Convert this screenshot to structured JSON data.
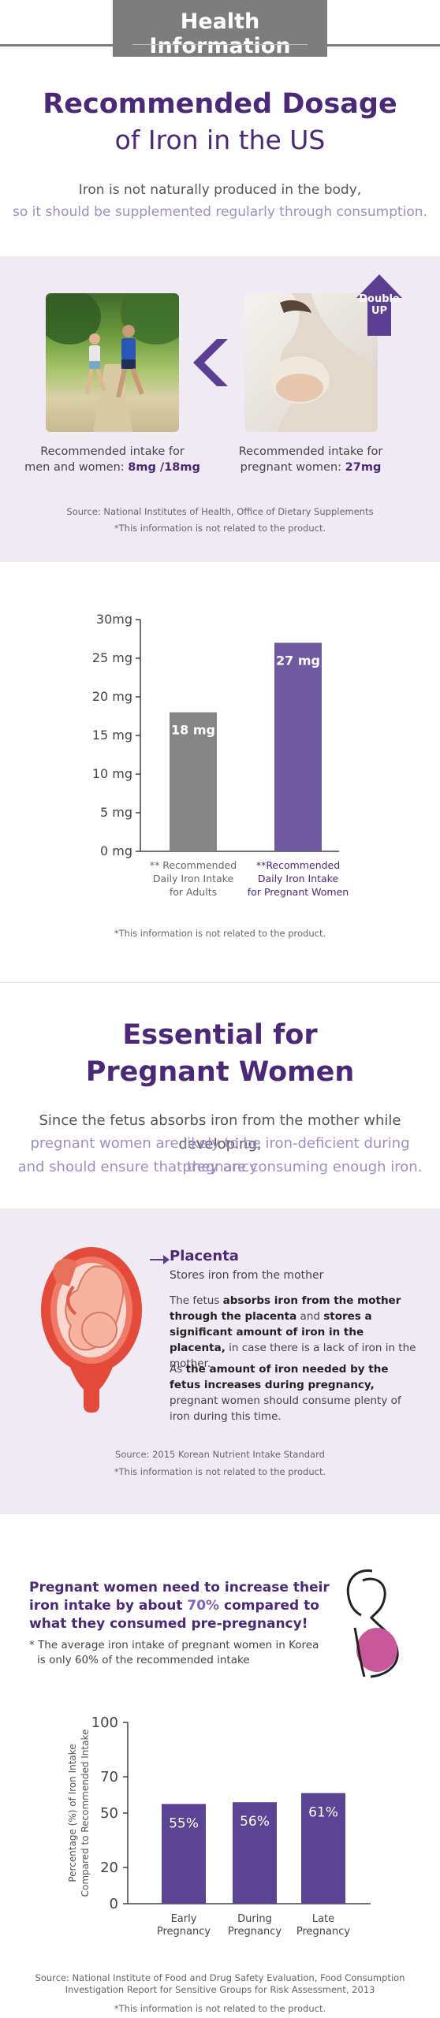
{
  "header": {
    "title": "Health Information"
  },
  "dosage": {
    "title_line1": "Recommended Dosage",
    "title_line2": "of Iron in the US",
    "intro_line1": "Iron is not naturally produced in the body,",
    "intro_line2": "so it should be supplemented regularly through consumption.",
    "badge_line1": "Double",
    "badge_line2": "UP",
    "adult_caption_line1": "Recommended intake for",
    "adult_caption_line2": "men and women: ",
    "adult_caption_value": "8mg /18mg",
    "preg_caption_line1": "Recommended intake for",
    "preg_caption_line2": "pregnant women: ",
    "preg_caption_value": "27mg",
    "source": "Source: National Institutes of Health, Office of Dietary Supplements",
    "disclaimer": "*This information is not related to the product."
  },
  "chart_data": [
    {
      "type": "bar",
      "categories": [
        "** Recommended Daily Iron Intake for Adults",
        "**Recommended Daily Iron Intake for Pregnant Women"
      ],
      "category_lines": [
        [
          "** Recommended",
          "Daily Iron Intake",
          "for Adults"
        ],
        [
          "**Recommended",
          "Daily Iron Intake",
          "for Pregnant Women"
        ]
      ],
      "values": [
        18,
        27
      ],
      "data_labels": [
        "18 mg",
        "27 mg"
      ],
      "colors": [
        "#858585",
        "#6f5aa0"
      ],
      "yticks": [
        0,
        5,
        10,
        15,
        20,
        25,
        30
      ],
      "ytick_labels": [
        "0 mg",
        "5 mg",
        "10 mg",
        "15 mg",
        "20 mg",
        "25 mg",
        "30mg"
      ],
      "ylim": [
        0,
        30
      ],
      "xlabel": "",
      "ylabel": "",
      "title": "",
      "disclaimer": "*This information is not related to the product."
    },
    {
      "type": "bar",
      "categories": [
        "Early Pregnancy",
        "During Pregnancy",
        "Late Pregnancy"
      ],
      "category_lines": [
        [
          "Early",
          "Pregnancy"
        ],
        [
          "During",
          "Pregnancy"
        ],
        [
          "Late",
          "Pregnancy"
        ]
      ],
      "values": [
        55,
        56,
        61
      ],
      "data_labels": [
        "55%",
        "56%",
        "61%"
      ],
      "color": "#5a4493",
      "yticks": [
        0,
        20,
        50,
        70,
        100
      ],
      "ytick_labels": [
        "0",
        "20",
        "50",
        "70",
        "100"
      ],
      "ylim": [
        0,
        100
      ],
      "ylabel_line1": "Percentage (%) of Iron Intake",
      "ylabel_line2": "Compared to Recommended Intake",
      "xlabel": "",
      "title": ""
    }
  ],
  "pregnant": {
    "title_line1": "Essential for",
    "title_line2": "Pregnant Women",
    "intro_line1": "Since the fetus absorbs iron from the mother while developing,",
    "intro_line2": "pregnant women are likely to be iron-deficient during pregnancy",
    "intro_line3": "and should ensure that they are consuming enough iron.",
    "placenta_title": "Placenta",
    "placenta_sub": "Stores iron from the mother",
    "p1_a": "The fetus ",
    "p1_b": "absorbs iron from the mother through the placenta",
    "p1_c": " and ",
    "p1_d": "stores a significant amount of iron in the placenta,",
    "p1_e": " in case there is a lack of iron in the mother.",
    "p2_a": "As ",
    "p2_b": "the amount of iron needed by the fetus increases during pregnancy,",
    "p2_c": " pregnant women should consume plenty of iron during this time.",
    "source": "Source: 2015 Korean Nutrient Intake Standard",
    "disclaimer": "*This information is not related to the product."
  },
  "increase": {
    "head_a": "Pregnant women need to increase their iron intake by about ",
    "head_b": "70%",
    "head_c": " compared to what they consumed pre-pregnancy!",
    "note_line1": "* The average iron intake of pregnant women in Korea",
    "note_line2": "is only 60% of the recommended intake",
    "source_line1": "Source: National Institute of Food and Drug Safety Evaluation, Food Consumption",
    "source_line2": "Investigation Report for Sensitive Groups for Risk Assessment, 2013",
    "disclaimer": "*This information is not related to the product."
  }
}
